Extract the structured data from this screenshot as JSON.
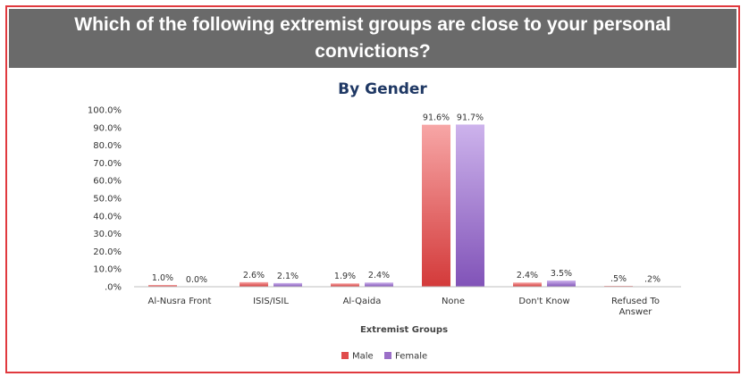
{
  "banner": {
    "title": "Which of the following extremist groups are close to your personal convictions?"
  },
  "chart_data": {
    "type": "bar",
    "title": "By Gender",
    "xlabel": "Extremist Groups",
    "ylabel": "",
    "ylim": [
      0,
      100
    ],
    "y_ticks": [
      "100.0%",
      "90.0%",
      "80.0%",
      "70.0%",
      "60.0%",
      "50.0%",
      "40.0%",
      "30.0%",
      "20.0%",
      "10.0%",
      ".0%"
    ],
    "categories": [
      "Al-Nusra Front",
      "ISIS/ISIL",
      "Al-Qaida",
      "None",
      "Don't Know",
      "Refused To Answer"
    ],
    "series": [
      {
        "name": "Male",
        "color": "#e04b4b",
        "values": [
          1.0,
          2.6,
          1.9,
          91.6,
          2.4,
          0.5
        ],
        "labels": [
          "1.0%",
          "2.6%",
          "1.9%",
          "91.6%",
          "2.4%",
          ".5%"
        ]
      },
      {
        "name": "Female",
        "color": "#9b6fc8",
        "values": [
          0.0,
          2.1,
          2.4,
          91.7,
          3.5,
          0.2
        ],
        "labels": [
          "0.0%",
          "2.1%",
          "2.4%",
          "91.7%",
          "3.5%",
          ".2%"
        ]
      }
    ],
    "legend_position": "bottom-center",
    "grid": false
  }
}
